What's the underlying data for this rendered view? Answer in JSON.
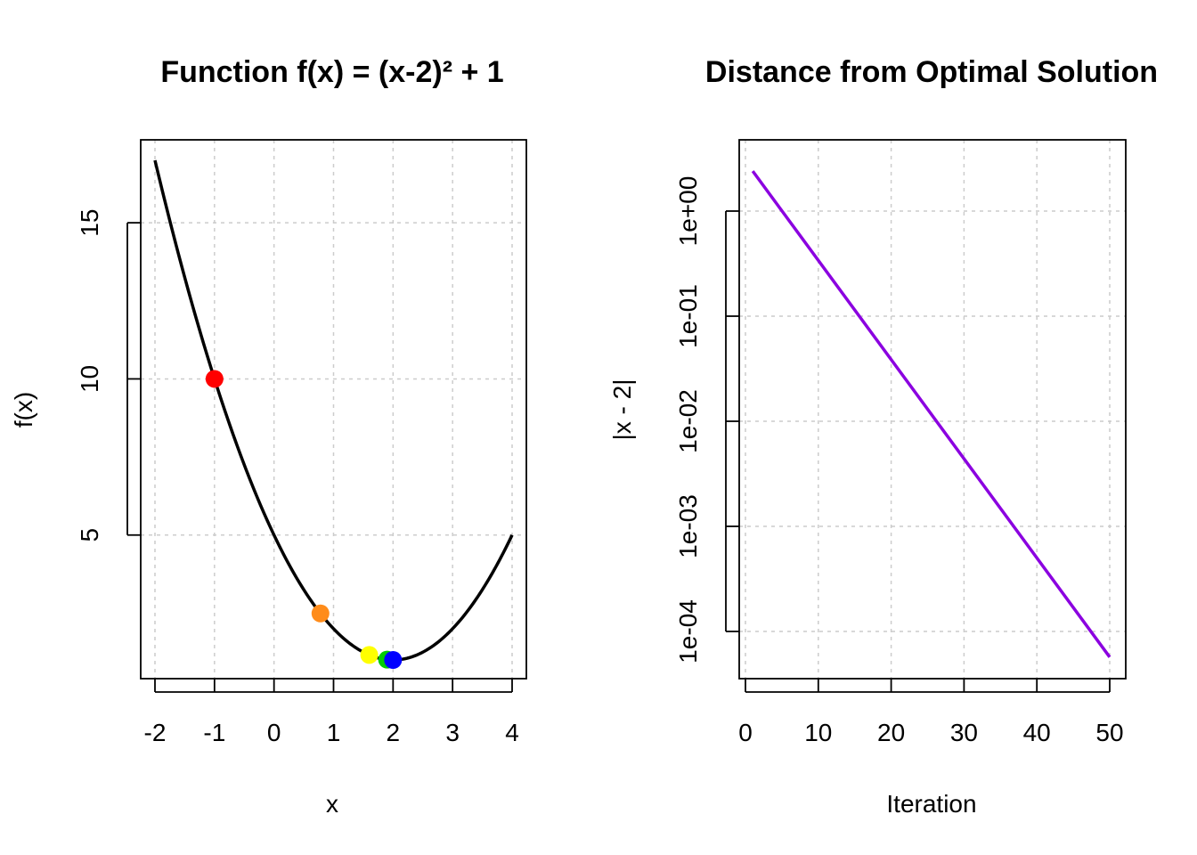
{
  "chart_data": [
    {
      "type": "line",
      "title": "Function f(x) = (x-2)² + 1",
      "xlabel": "x",
      "ylabel": "f(x)",
      "xlim": [
        -2,
        4
      ],
      "ylim": [
        1,
        17
      ],
      "x_ticks": [
        -2,
        -1,
        0,
        1,
        2,
        3,
        4
      ],
      "y_ticks": [
        5,
        10,
        15
      ],
      "grid": true,
      "series": [
        {
          "function": "(x-2)^2 + 1",
          "x_range": [
            -2,
            4
          ],
          "color": "#000000"
        }
      ],
      "points": [
        {
          "x": -1.0,
          "y": 10.0,
          "color": "#ff0000"
        },
        {
          "x": 0.78,
          "y": 2.49,
          "color": "#ff8c1a"
        },
        {
          "x": 1.6,
          "y": 1.16,
          "color": "#ffff00"
        },
        {
          "x": 1.9,
          "y": 1.01,
          "color": "#00cc00"
        },
        {
          "x": 2.0,
          "y": 1.0,
          "color": "#0000ff"
        }
      ]
    },
    {
      "type": "line",
      "title": "Distance from Optimal Solution",
      "xlabel": "Iteration",
      "ylabel": "|x - 2|",
      "xlim": [
        1,
        50
      ],
      "ylim": [
        5e-05,
        3
      ],
      "y_scale": "log",
      "x_ticks": [
        0,
        10,
        20,
        30,
        40,
        50
      ],
      "y_ticks": [
        1,
        0.1,
        0.01,
        0.001,
        0.0001
      ],
      "y_tick_labels": [
        "1e+00",
        "1e-01",
        "1e-02",
        "1e-03",
        "1e-04"
      ],
      "grid": true,
      "series": [
        {
          "x": [
            1,
            50
          ],
          "y": [
            2.4,
            5.7e-05
          ],
          "color": "#8b00e0"
        }
      ]
    }
  ]
}
